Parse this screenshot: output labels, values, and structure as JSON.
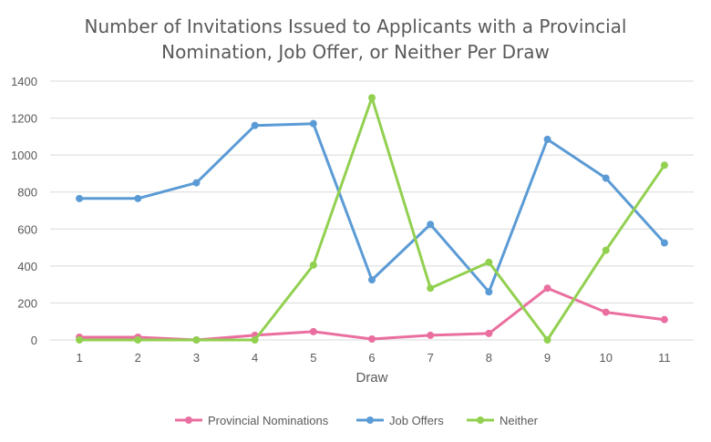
{
  "chart_data": {
    "type": "line",
    "title_lines": [
      "Number of Invitations Issued to Applicants with a Provincial",
      "Nomination, Job Offer, or Neither Per Draw"
    ],
    "xlabel": "Draw",
    "ylabel": "",
    "x": [
      1,
      2,
      3,
      4,
      5,
      6,
      7,
      8,
      9,
      10,
      11
    ],
    "ylim": [
      0,
      1400
    ],
    "yticks": [
      0,
      200,
      400,
      600,
      800,
      1000,
      1200,
      1400
    ],
    "grid": true,
    "legend_position": "bottom",
    "series": [
      {
        "name": "Provincial Nominations",
        "color": "#ea6fa0",
        "values": [
          15,
          15,
          0,
          25,
          45,
          5,
          25,
          35,
          280,
          150,
          110
        ]
      },
      {
        "name": "Job Offers",
        "color": "#5b9bd5",
        "values": [
          765,
          765,
          850,
          1160,
          1170,
          325,
          625,
          260,
          1085,
          875,
          525
        ]
      },
      {
        "name": "Neither",
        "color": "#92d050",
        "values": [
          0,
          0,
          0,
          0,
          405,
          1310,
          280,
          420,
          0,
          485,
          945
        ]
      }
    ]
  }
}
